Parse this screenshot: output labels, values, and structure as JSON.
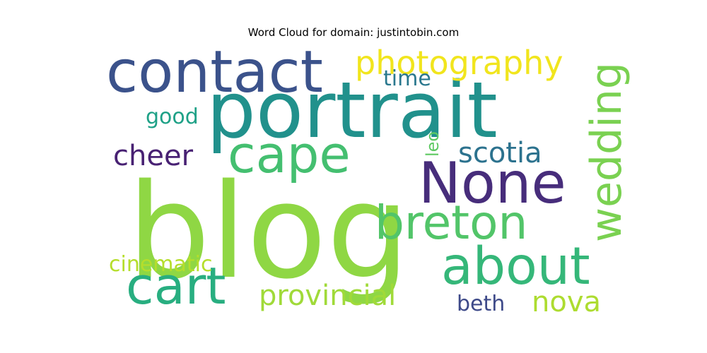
{
  "chart_data": {
    "type": "wordcloud",
    "title": "Word Cloud for domain: justintobin.com",
    "words": [
      {
        "text": "blog",
        "weight": 1.0,
        "color": "#8fd744",
        "orientation": "horizontal"
      },
      {
        "text": "portrait",
        "weight": 0.95,
        "color": "#21918c",
        "orientation": "horizontal"
      },
      {
        "text": "contact",
        "weight": 0.8,
        "color": "#3b528b",
        "orientation": "horizontal"
      },
      {
        "text": "None",
        "weight": 0.75,
        "color": "#472d7b",
        "orientation": "horizontal"
      },
      {
        "text": "cape",
        "weight": 0.7,
        "color": "#44bf70",
        "orientation": "horizontal"
      },
      {
        "text": "about",
        "weight": 0.7,
        "color": "#35b779",
        "orientation": "horizontal"
      },
      {
        "text": "cart",
        "weight": 0.65,
        "color": "#28ae80",
        "orientation": "horizontal"
      },
      {
        "text": "breton",
        "weight": 0.6,
        "color": "#52c569",
        "orientation": "horizontal"
      },
      {
        "text": "wedding",
        "weight": 0.55,
        "color": "#7ad151",
        "orientation": "vertical"
      },
      {
        "text": "photography",
        "weight": 0.5,
        "color": "#f1e51d",
        "orientation": "horizontal"
      },
      {
        "text": "provincial",
        "weight": 0.4,
        "color": "#a0da39",
        "orientation": "horizontal"
      },
      {
        "text": "nova",
        "weight": 0.4,
        "color": "#addc30",
        "orientation": "horizontal"
      },
      {
        "text": "scotia",
        "weight": 0.4,
        "color": "#2c728e",
        "orientation": "horizontal"
      },
      {
        "text": "cheer",
        "weight": 0.4,
        "color": "#482173",
        "orientation": "horizontal"
      },
      {
        "text": "time",
        "weight": 0.3,
        "color": "#2a788e",
        "orientation": "horizontal"
      },
      {
        "text": "good",
        "weight": 0.3,
        "color": "#1fa187",
        "orientation": "horizontal"
      },
      {
        "text": "cinematic",
        "weight": 0.3,
        "color": "#b5de2b",
        "orientation": "horizontal"
      },
      {
        "text": "beth",
        "weight": 0.3,
        "color": "#3e4a89",
        "orientation": "horizontal"
      },
      {
        "text": "leo",
        "weight": 0.2,
        "color": "#5ec962",
        "orientation": "vertical"
      }
    ]
  }
}
